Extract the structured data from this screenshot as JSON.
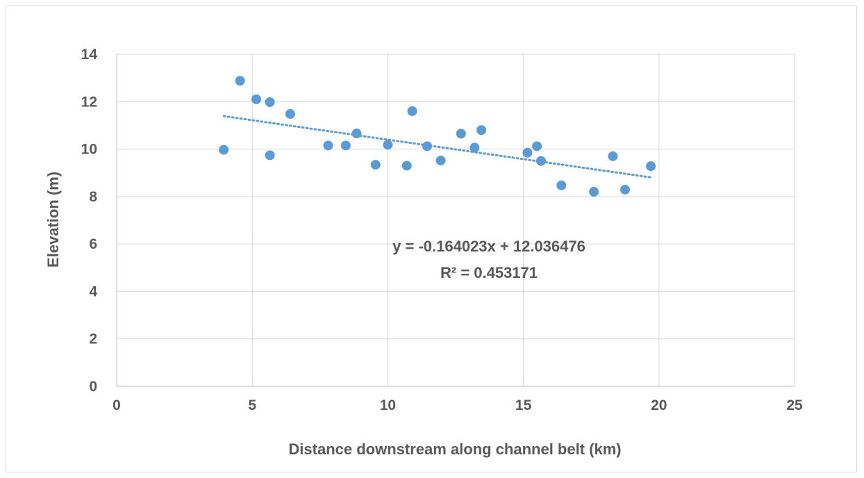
{
  "chart_data": {
    "type": "scatter",
    "title": "",
    "xlabel": "Distance downstream along channel belt (km)",
    "ylabel": "Elevation (m)",
    "xlim": [
      0,
      25
    ],
    "ylim": [
      0,
      14
    ],
    "x_ticks": [
      0,
      5,
      10,
      15,
      20,
      25
    ],
    "y_ticks": [
      0,
      2,
      4,
      6,
      8,
      10,
      12,
      14
    ],
    "grid": true,
    "legend": "none",
    "marker_color": "#5B9BD5",
    "trendline_color": "#5B9BD5",
    "series": [
      {
        "points": [
          [
            3.95,
            9.97
          ],
          [
            4.55,
            12.88
          ],
          [
            5.15,
            12.1
          ],
          [
            5.65,
            11.98
          ],
          [
            5.65,
            9.74
          ],
          [
            6.4,
            11.48
          ],
          [
            7.8,
            10.15
          ],
          [
            8.45,
            10.15
          ],
          [
            8.85,
            10.66
          ],
          [
            9.55,
            9.34
          ],
          [
            10.0,
            10.18
          ],
          [
            10.7,
            9.3
          ],
          [
            10.9,
            11.6
          ],
          [
            11.45,
            10.12
          ],
          [
            11.95,
            9.52
          ],
          [
            12.7,
            10.65
          ],
          [
            13.2,
            10.06
          ],
          [
            13.45,
            10.8
          ],
          [
            15.15,
            9.85
          ],
          [
            15.5,
            10.12
          ],
          [
            15.65,
            9.5
          ],
          [
            16.4,
            8.47
          ],
          [
            17.6,
            8.2
          ],
          [
            18.3,
            9.7
          ],
          [
            18.75,
            8.29
          ],
          [
            19.7,
            9.28
          ]
        ]
      }
    ],
    "trendline": {
      "type": "linear",
      "slope": -0.164023,
      "intercept": 12.036476,
      "x_range": [
        3.95,
        19.75
      ],
      "style": "dotted"
    },
    "annotations": {
      "equation": "y = -0.164023x + 12.036476",
      "r_squared": "R² = 0.453171"
    }
  }
}
